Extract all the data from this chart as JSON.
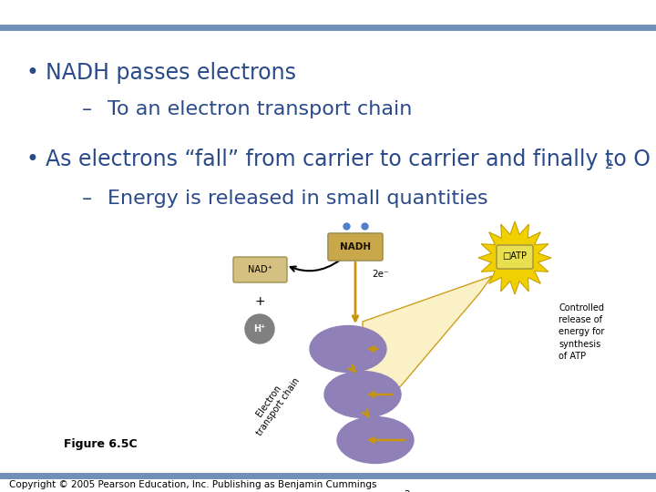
{
  "bg_color": "#ffffff",
  "bar_color": "#7090b8",
  "bullet1": "NADH passes electrons",
  "sub1": "To an electron transport chain",
  "bullet2": "As electrons “fall” from carrier to carrier and finally to O",
  "bullet2_sub": "2",
  "sub2": "Energy is released in small quantities",
  "figure_label": "Figure 6.5C",
  "copyright": "Copyright © 2005 Pearson Education, Inc. Publishing as Benjamin Cummings",
  "text_color": "#2a4a8a",
  "font_size_bullet": 17,
  "font_size_sub": 16,
  "font_size_copyright": 7.5
}
